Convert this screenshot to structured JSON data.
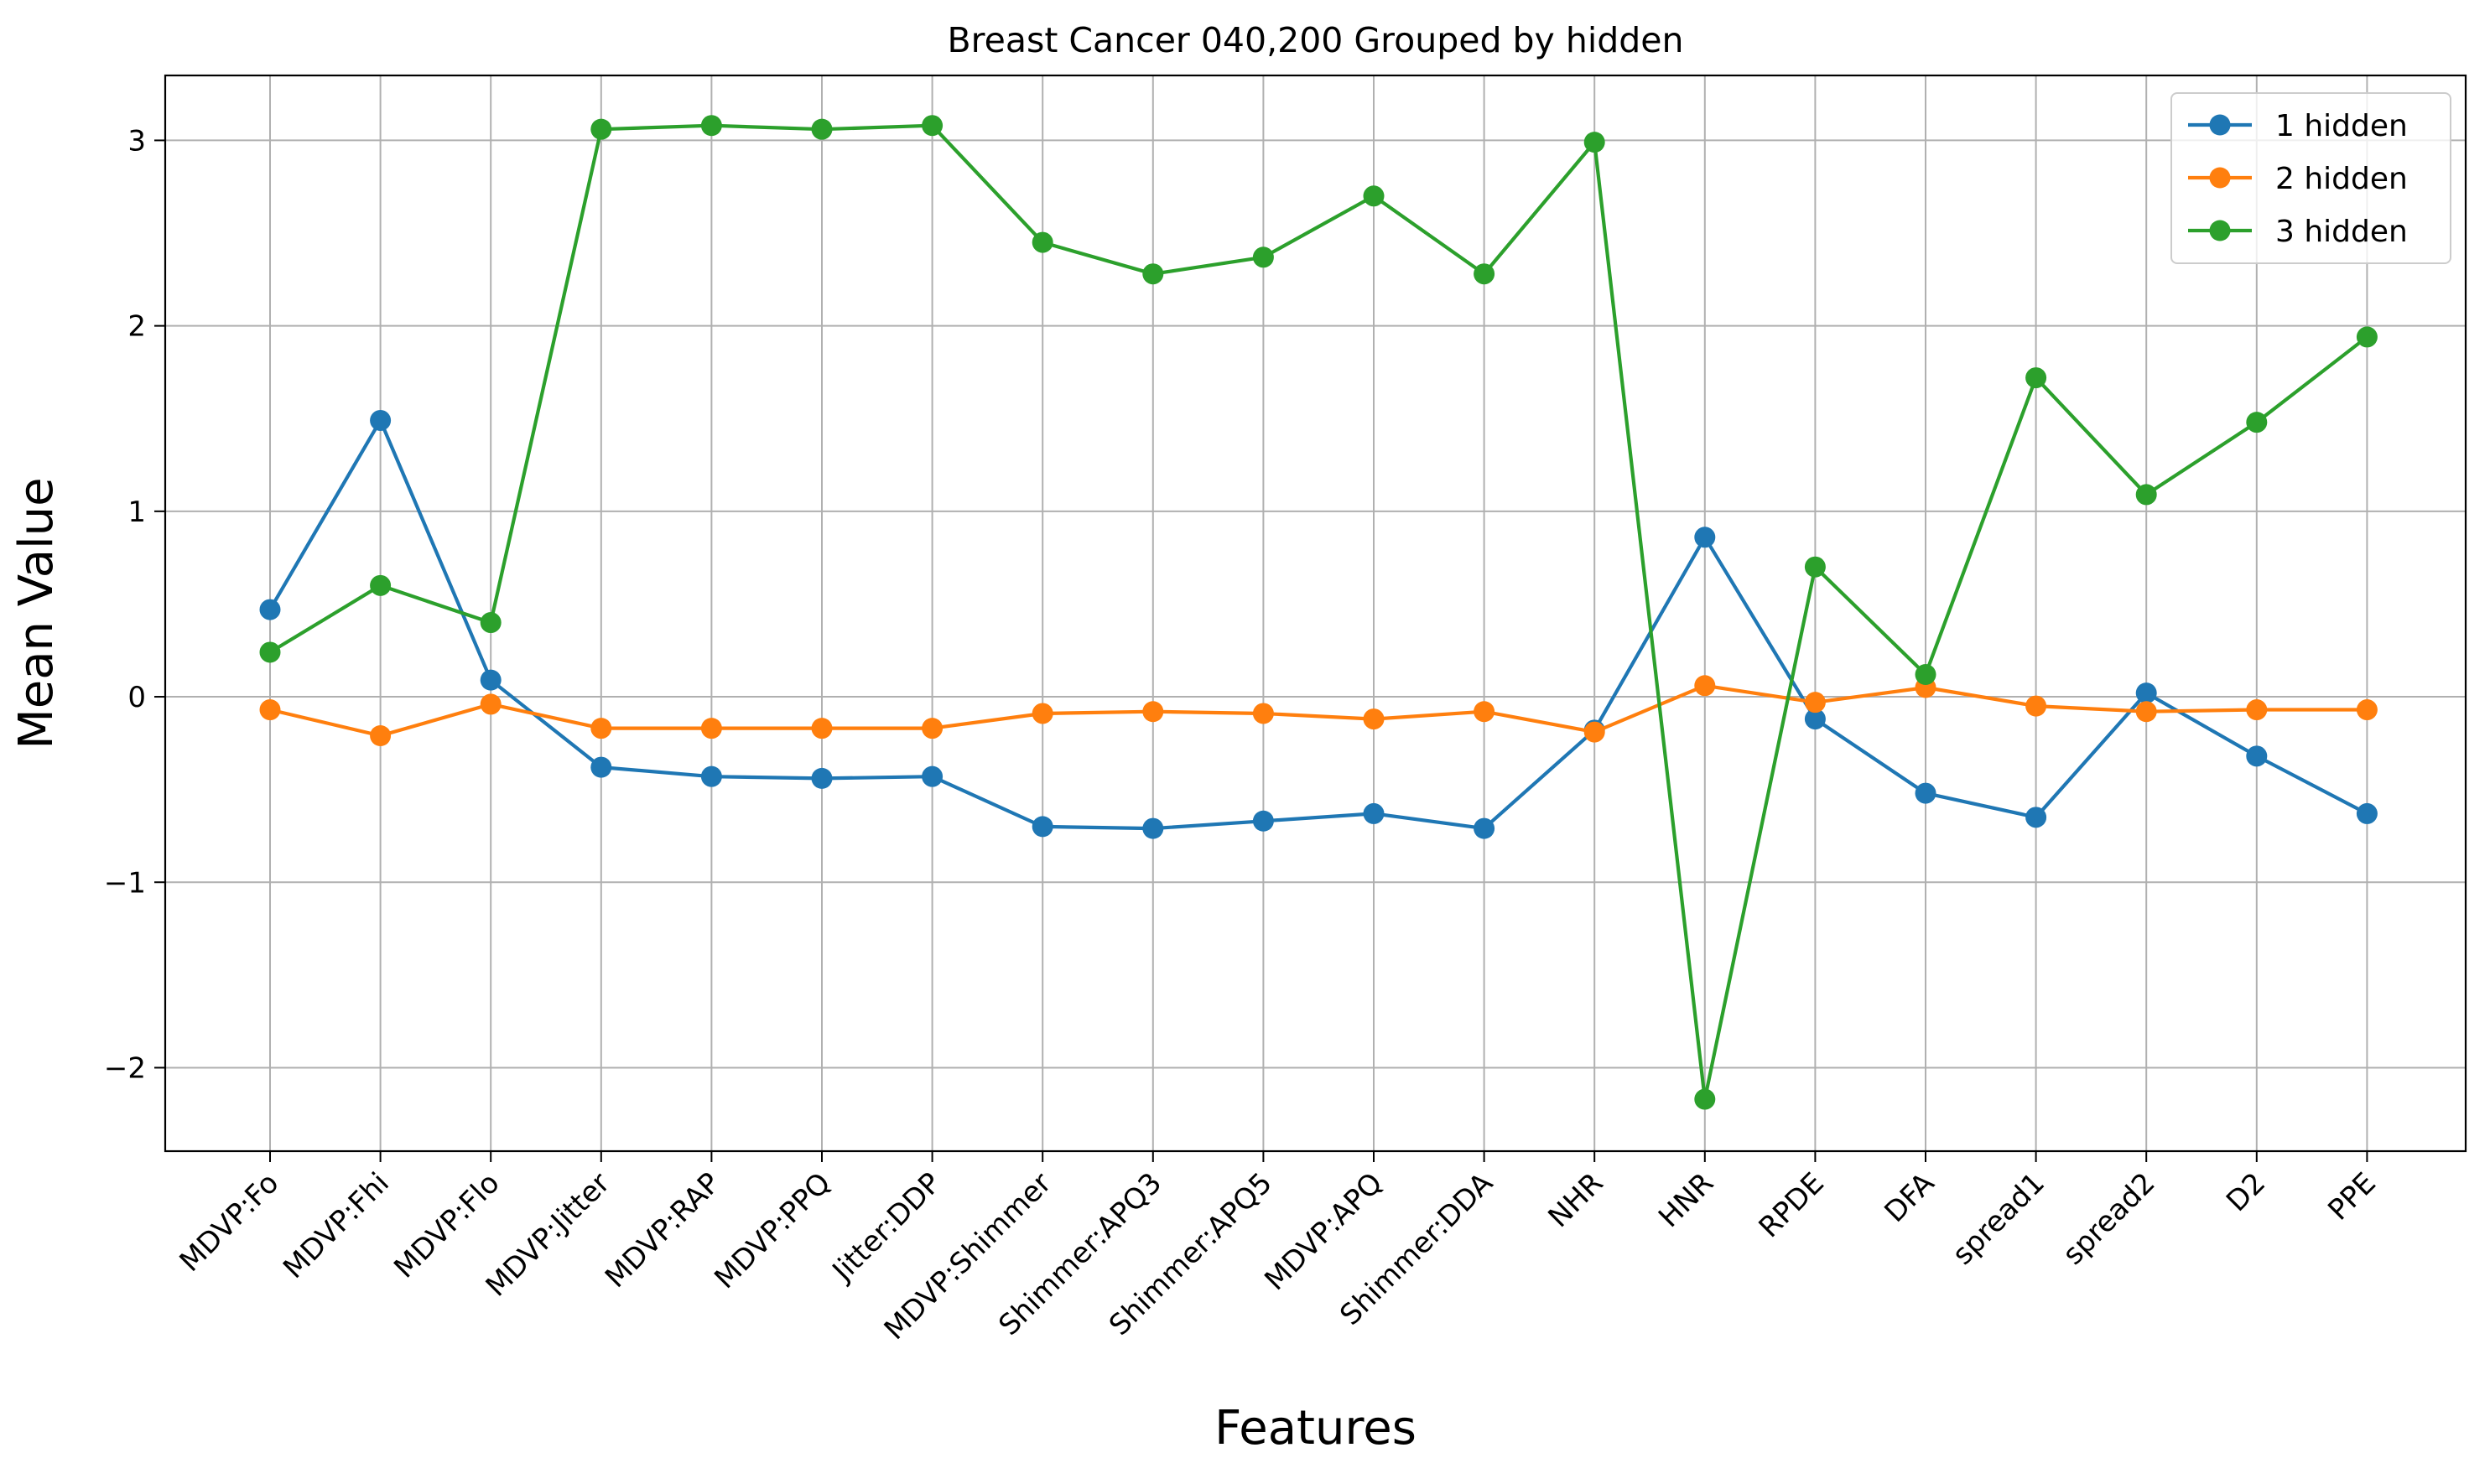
{
  "chart_data": {
    "type": "line",
    "title": "Breast Cancer 040,200 Grouped by hidden",
    "xlabel": "Features",
    "ylabel": "Mean Value",
    "categories": [
      "MDVP:Fo",
      "MDVP:Fhi",
      "MDVP:Flo",
      "MDVP:Jitter",
      "MDVP:RAP",
      "MDVP:PPQ",
      "Jitter:DDP",
      "MDVP:Shimmer",
      "Shimmer:APQ3",
      "Shimmer:APQ5",
      "MDVP:APQ",
      "Shimmer:DDA",
      "NHR",
      "HNR",
      "RPDE",
      "DFA",
      "spread1",
      "spread2",
      "D2",
      "PPE"
    ],
    "ylim": [
      -2.45,
      3.35
    ],
    "yticks": [
      -2,
      -1,
      0,
      1,
      2,
      3
    ],
    "ytick_labels": [
      "−2",
      "−1",
      "0",
      "1",
      "2",
      "3"
    ],
    "grid": true,
    "legend_position": "upper right",
    "series": [
      {
        "name": "1 hidden",
        "color": "#1f77b4",
        "values": [
          0.47,
          1.49,
          0.09,
          -0.38,
          -0.43,
          -0.44,
          -0.43,
          -0.7,
          -0.71,
          -0.67,
          -0.63,
          -0.71,
          -0.18,
          0.86,
          -0.12,
          -0.52,
          -0.65,
          0.02,
          -0.32,
          -0.63
        ]
      },
      {
        "name": "2 hidden",
        "color": "#ff7f0e",
        "values": [
          -0.07,
          -0.21,
          -0.04,
          -0.17,
          -0.17,
          -0.17,
          -0.17,
          -0.09,
          -0.08,
          -0.09,
          -0.12,
          -0.08,
          -0.19,
          0.06,
          -0.03,
          0.05,
          -0.05,
          -0.08,
          -0.07,
          -0.07
        ]
      },
      {
        "name": "3 hidden",
        "color": "#2ca02c",
        "values": [
          0.24,
          0.6,
          0.4,
          3.06,
          3.08,
          3.06,
          3.08,
          2.45,
          2.28,
          2.37,
          2.7,
          2.28,
          2.99,
          -2.17,
          0.7,
          0.12,
          1.72,
          1.09,
          1.48,
          1.94
        ]
      }
    ]
  }
}
